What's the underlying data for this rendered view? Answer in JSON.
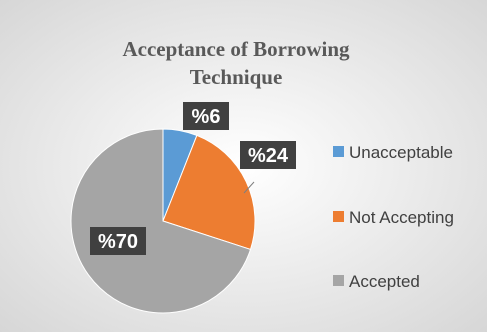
{
  "chart_data": {
    "type": "pie",
    "title": "Acceptance of Borrowing Technique",
    "title_lines": [
      "Acceptance of Borrowing",
      "Technique"
    ],
    "categories": [
      "Unacceptable",
      "Not Accepting",
      "Accepted"
    ],
    "values": [
      6,
      24,
      70
    ],
    "data_labels": [
      "%6",
      "%24",
      "%70"
    ],
    "colors": [
      "#5B9BD5",
      "#ED7D31",
      "#A5A5A5"
    ],
    "legend": {
      "position": "right",
      "entries": [
        "Unacceptable",
        "Not Accepting",
        "Accepted"
      ]
    }
  },
  "colors": {
    "background_gradient_start": "#d9d9d9",
    "background_gradient_end": "#ffffff",
    "label_box": "#404040"
  }
}
